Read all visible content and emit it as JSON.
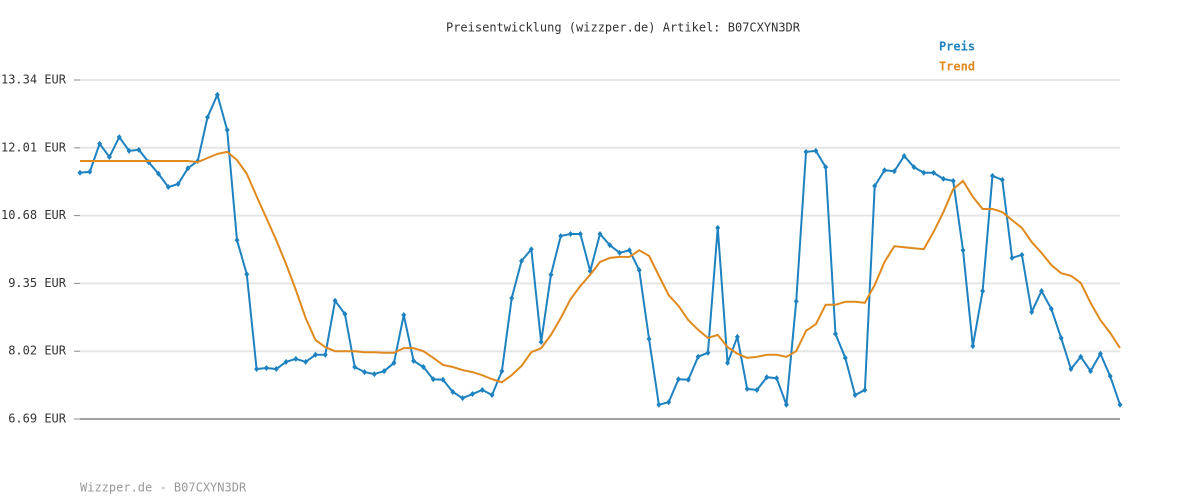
{
  "chart_data": {
    "type": "line",
    "title": "Preisentwicklung (wizzper.de) Artikel: B07CXYN3DR",
    "footer": "Wizzper.de - B07CXYN3DR",
    "legend": "top-right",
    "grid": true,
    "ylim": [
      6.69,
      13.34
    ],
    "yticks": [
      {
        "value": 6.69,
        "label": "6.69 EUR"
      },
      {
        "value": 8.02,
        "label": "8.02 EUR"
      },
      {
        "value": 9.35,
        "label": "9.35 EUR"
      },
      {
        "value": 10.68,
        "label": "10.68 EUR"
      },
      {
        "value": 12.01,
        "label": "12.01 EUR"
      },
      {
        "value": 13.34,
        "label": "13.34 EUR"
      }
    ],
    "series": [
      {
        "name": "Preis",
        "color": "#1f82c0",
        "markers": true,
        "values": [
          11.52,
          11.54,
          12.09,
          11.83,
          12.22,
          11.95,
          11.97,
          11.73,
          11.5,
          11.24,
          11.3,
          11.61,
          11.75,
          12.61,
          13.05,
          12.36,
          10.2,
          9.53,
          7.67,
          7.69,
          7.67,
          7.81,
          7.87,
          7.81,
          7.95,
          7.95,
          9.01,
          8.75,
          7.71,
          7.61,
          7.57,
          7.63,
          7.79,
          8.73,
          7.83,
          7.71,
          7.47,
          7.46,
          7.22,
          7.1,
          7.18,
          7.26,
          7.16,
          7.63,
          9.06,
          9.79,
          10.02,
          8.2,
          9.52,
          10.28,
          10.32,
          10.32,
          9.59,
          10.32,
          10.1,
          9.95,
          10.0,
          9.61,
          8.26,
          6.97,
          7.02,
          7.47,
          7.46,
          7.91,
          7.99,
          10.44,
          7.79,
          8.3,
          7.28,
          7.26,
          7.51,
          7.49,
          6.97,
          9.0,
          11.93,
          11.95,
          11.63,
          8.36,
          7.89,
          7.16,
          7.26,
          11.26,
          11.57,
          11.55,
          11.85,
          11.63,
          11.52,
          11.52,
          11.4,
          11.36,
          10.0,
          8.12,
          9.2,
          11.46,
          11.38,
          9.85,
          9.91,
          8.79,
          9.2,
          8.85,
          8.28,
          7.67,
          7.91,
          7.63,
          7.97,
          7.53,
          6.97
        ]
      },
      {
        "name": "Trend",
        "color": "#e08a1e",
        "markers": false,
        "values": [
          11.75,
          11.75,
          11.75,
          11.75,
          11.75,
          11.75,
          11.75,
          11.75,
          11.75,
          11.75,
          11.75,
          11.75,
          11.73,
          11.81,
          11.89,
          11.93,
          11.77,
          11.5,
          11.06,
          10.63,
          10.2,
          9.73,
          9.22,
          8.67,
          8.24,
          8.1,
          8.02,
          8.02,
          8.02,
          8.0,
          8.0,
          7.99,
          7.99,
          8.08,
          8.08,
          8.02,
          7.89,
          7.75,
          7.71,
          7.65,
          7.61,
          7.55,
          7.47,
          7.41,
          7.55,
          7.73,
          8.0,
          8.08,
          8.34,
          8.67,
          9.04,
          9.3,
          9.52,
          9.77,
          9.85,
          9.87,
          9.87,
          10.0,
          9.89,
          9.5,
          9.12,
          8.91,
          8.63,
          8.44,
          8.28,
          8.34,
          8.1,
          7.97,
          7.89,
          7.91,
          7.95,
          7.95,
          7.91,
          8.02,
          8.42,
          8.55,
          8.93,
          8.93,
          8.99,
          8.99,
          8.97,
          9.32,
          9.77,
          10.08,
          10.06,
          10.04,
          10.02,
          10.36,
          10.75,
          11.2,
          11.36,
          11.05,
          10.81,
          10.81,
          10.75,
          10.59,
          10.44,
          10.16,
          9.95,
          9.71,
          9.55,
          9.5,
          9.36,
          8.97,
          8.63,
          8.38,
          8.08
        ]
      }
    ]
  }
}
